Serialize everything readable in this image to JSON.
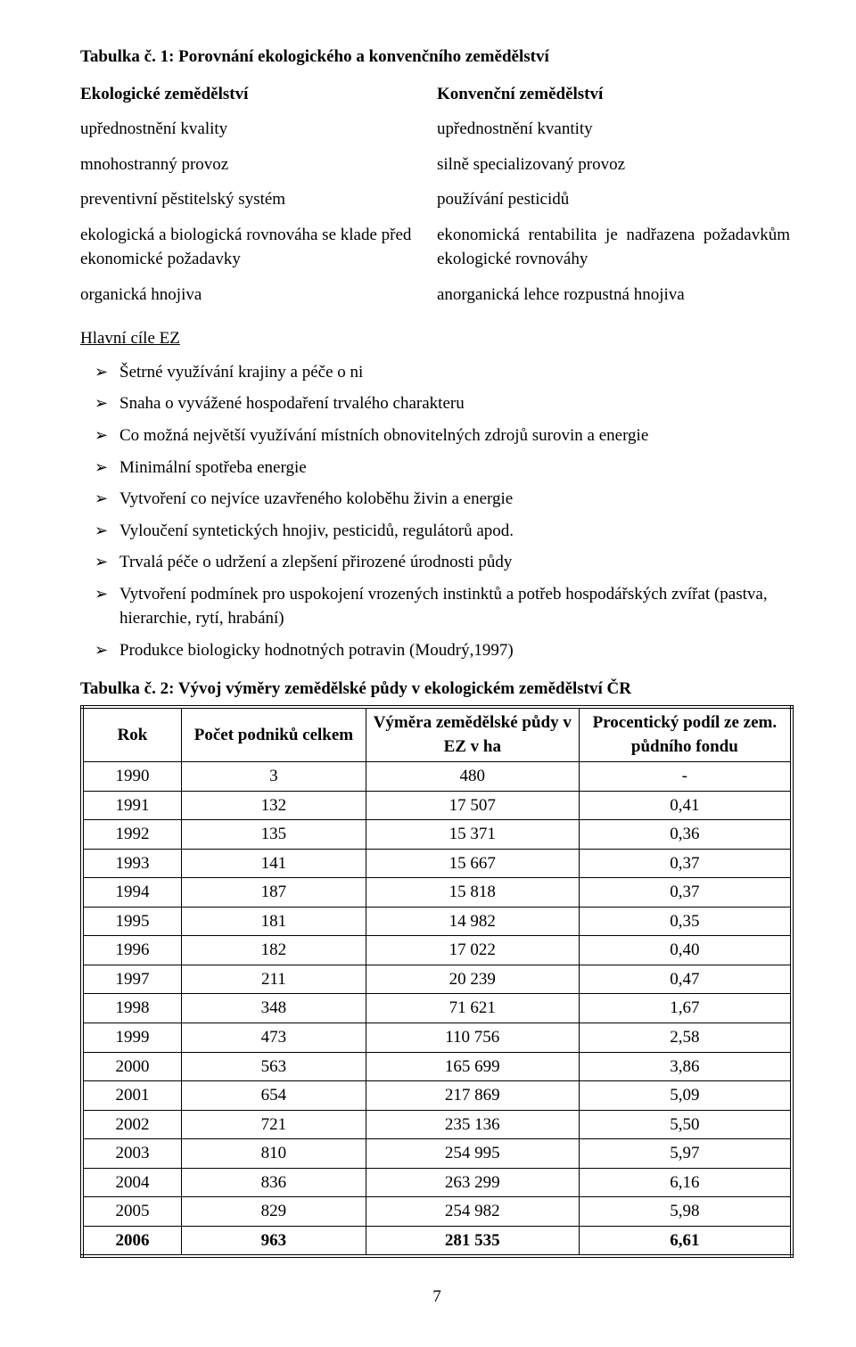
{
  "table1": {
    "title": "Tabulka č. 1: Porovnání ekologického a konvenčního zemědělství",
    "header_left": "Ekologické zemědělství",
    "header_right": "Konvenční zemědělství",
    "rows": [
      {
        "l": "upřednostnění kvality",
        "r": "upřednostnění kvantity"
      },
      {
        "l": "mnohostranný provoz",
        "r": "silně specializovaný provoz"
      },
      {
        "l": "preventivní pěstitelský systém",
        "r": "používání pesticidů"
      },
      {
        "l": "ekologická a biologická rovnováha se klade před ekonomické požadavky",
        "r": "ekonomická rentabilita je nadřazena požadavkům ekologické rovnováhy",
        "r_justify": true
      },
      {
        "l": "organická hnojiva",
        "r": "anorganická lehce rozpustná hnojiva"
      }
    ]
  },
  "goals": {
    "heading": "Hlavní cíle EZ",
    "items": [
      "Šetrné využívání krajiny a péče o ni",
      "Snaha o vyvážené hospodaření trvalého charakteru",
      "Co možná největší využívání místních obnovitelných zdrojů surovin a energie",
      "Minimální spotřeba energie",
      "Vytvoření co nejvíce uzavřeného koloběhu živin a energie",
      "Vyloučení syntetických hnojiv, pesticidů, regulátorů apod.",
      "Trvalá péče o udržení a zlepšení přirozené úrodnosti půdy",
      "Vytvoření podmínek pro uspokojení vrozených instinktů a potřeb hospodářských zvířat (pastva, hierarchie, rytí, hrabání)",
      "Produkce biologicky hodnotných potravin (Moudrý,1997)"
    ]
  },
  "table2": {
    "title": "Tabulka č. 2: Vývoj výměry zemědělské půdy v ekologickém zemědělství ČR",
    "columns": [
      "Rok",
      "Počet podniků celkem",
      "Výměra zemědělské půdy v EZ v ha",
      "Procentický podíl ze zem. půdního fondu"
    ],
    "rows": [
      [
        "1990",
        "3",
        "480",
        "-"
      ],
      [
        "1991",
        "132",
        "17 507",
        "0,41"
      ],
      [
        "1992",
        "135",
        "15 371",
        "0,36"
      ],
      [
        "1993",
        "141",
        "15 667",
        "0,37"
      ],
      [
        "1994",
        "187",
        "15 818",
        "0,37"
      ],
      [
        "1995",
        "181",
        "14 982",
        "0,35"
      ],
      [
        "1996",
        "182",
        "17 022",
        "0,40"
      ],
      [
        "1997",
        "211",
        "20 239",
        "0,47"
      ],
      [
        "1998",
        "348",
        "71 621",
        "1,67"
      ],
      [
        "1999",
        "473",
        "110 756",
        "2,58"
      ],
      [
        "2000",
        "563",
        "165 699",
        "3,86"
      ],
      [
        "2001",
        "654",
        "217 869",
        "5,09"
      ],
      [
        "2002",
        "721",
        "235 136",
        "5,50"
      ],
      [
        "2003",
        "810",
        "254 995",
        "5,97"
      ],
      [
        "2004",
        "836",
        "263 299",
        "6,16"
      ],
      [
        "2005",
        "829",
        "254 982",
        "5,98"
      ],
      [
        "2006",
        "963",
        "281 535",
        "6,61"
      ]
    ],
    "last_row_bold": true
  },
  "page_number": "7"
}
